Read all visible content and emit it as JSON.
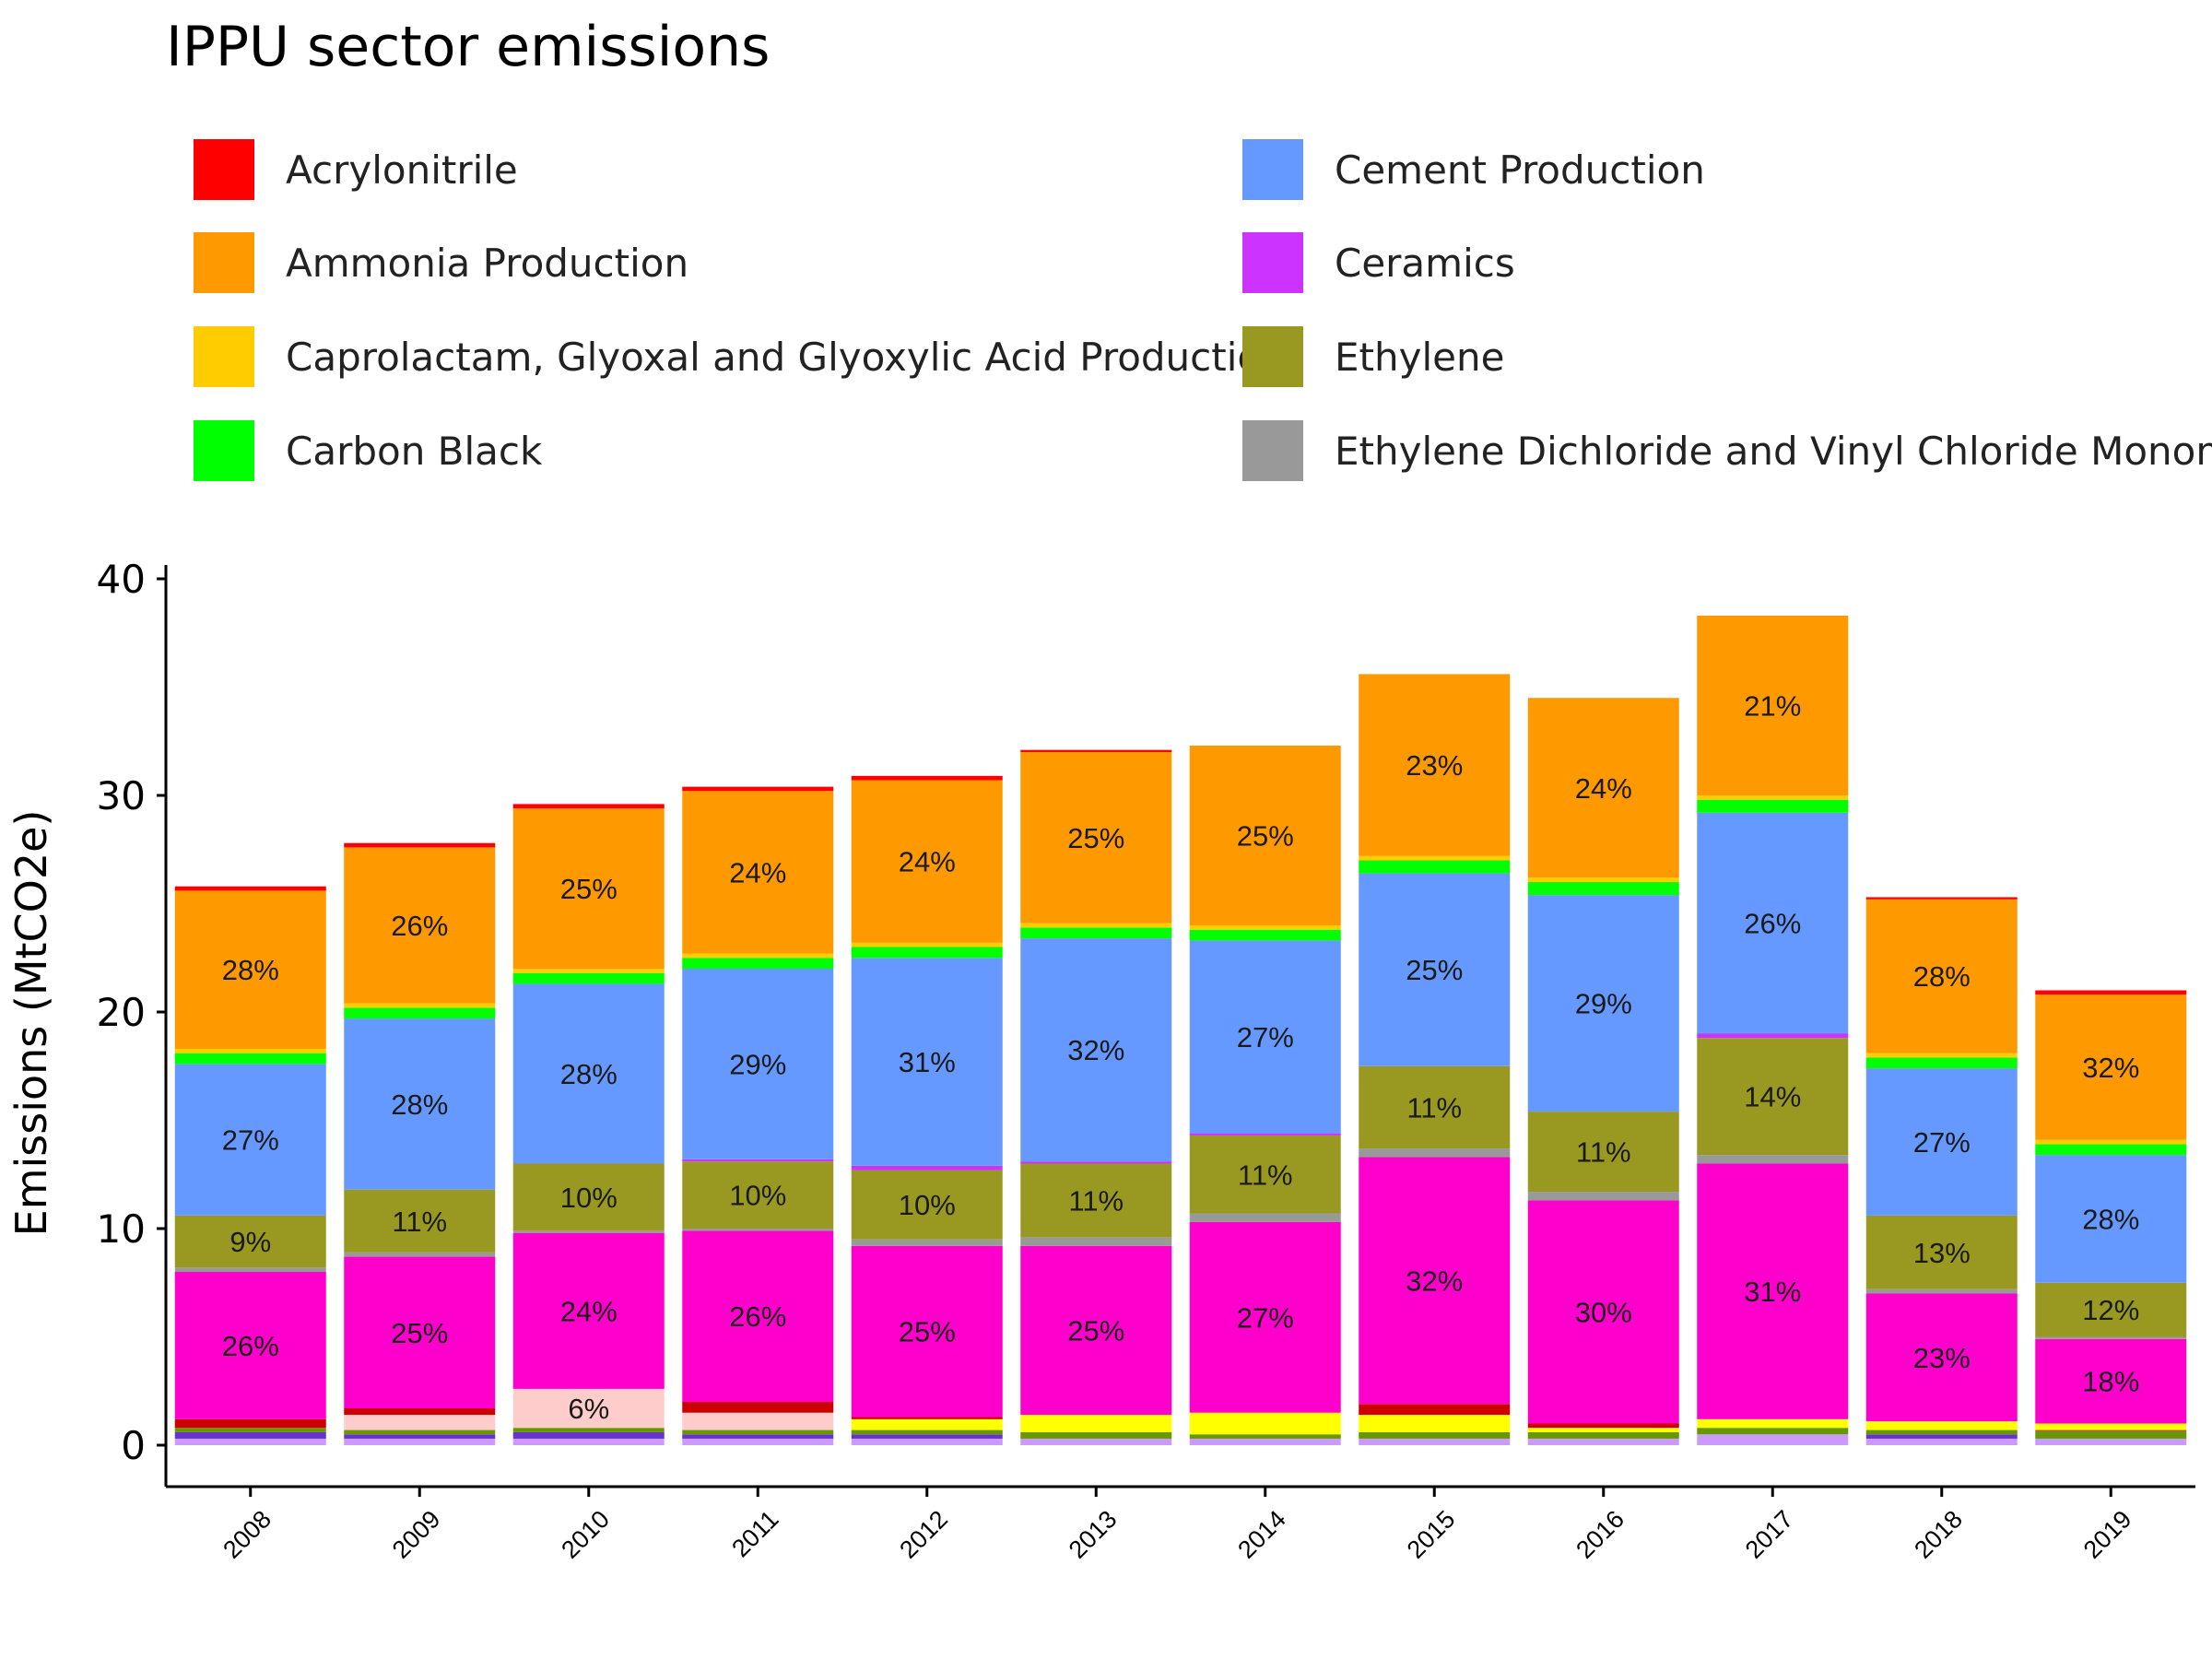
{
  "chart_data": {
    "type": "bar",
    "stacked": true,
    "title": "IPPU sector emissions",
    "xlabel": "",
    "ylabel": "Emissions (MtCO2e)",
    "ylim": [
      0,
      40
    ],
    "yticks": [
      0,
      10,
      20,
      30,
      40
    ],
    "grid": false,
    "legend_position": "top",
    "categories": [
      "2008",
      "2009",
      "2010",
      "2011",
      "2012",
      "2013",
      "2014",
      "2015",
      "2016",
      "2017",
      "2018",
      "2019"
    ],
    "series": [
      {
        "name": "",
        "color": "#cc99ff",
        "values": [
          0.3,
          0.3,
          0.3,
          0.3,
          0.3,
          0.3,
          0.3,
          0.3,
          0.3,
          0.5,
          0.3,
          0.3
        ],
        "labels": []
      },
      {
        "name": "",
        "color": "#6633cc",
        "values": [
          0.3,
          0.2,
          0.3,
          0.2,
          0.2,
          0.0,
          0.0,
          0.0,
          0.0,
          0.0,
          0.2,
          0.0
        ],
        "labels": []
      },
      {
        "name": "",
        "color": "#669900",
        "values": [
          0.2,
          0.2,
          0.2,
          0.2,
          0.2,
          0.3,
          0.2,
          0.3,
          0.3,
          0.3,
          0.2,
          0.3
        ],
        "labels": []
      },
      {
        "name": "",
        "color": "#996633",
        "values": [
          0.0,
          0.0,
          0.0,
          0.0,
          0.0,
          0.0,
          0.0,
          0.0,
          0.0,
          0.0,
          0.0,
          0.1
        ],
        "labels": []
      },
      {
        "name": "",
        "color": "#ffff00",
        "values": [
          0.0,
          0.0,
          0.0,
          0.0,
          0.5,
          0.8,
          1.0,
          0.8,
          0.2,
          0.4,
          0.4,
          0.3
        ],
        "labels": []
      },
      {
        "name": "",
        "color": "#ffcccc",
        "values": [
          0.0,
          0.7,
          1.8,
          0.8,
          0.0,
          0.0,
          0.0,
          0.0,
          0.0,
          0.0,
          0.0,
          0.0
        ],
        "labels": [
          "",
          "",
          "6%",
          "",
          "",
          "",
          "",
          "",
          "",
          "",
          "",
          ""
        ]
      },
      {
        "name": "",
        "color": "#cc0000",
        "values": [
          0.4,
          0.3,
          0.0,
          0.5,
          0.1,
          0.0,
          0.0,
          0.5,
          0.2,
          0.0,
          0.0,
          0.0
        ],
        "labels": []
      },
      {
        "name": "",
        "color": "#ff00cc",
        "values": [
          6.8,
          7.0,
          7.2,
          7.9,
          7.9,
          7.8,
          8.8,
          11.4,
          10.3,
          11.8,
          5.9,
          3.9
        ],
        "labels": [
          "26%",
          "25%",
          "24%",
          "26%",
          "25%",
          "25%",
          "27%",
          "32%",
          "30%",
          "31%",
          "23%",
          "18%"
        ]
      },
      {
        "name": "Ethylene Dichloride and Vinyl Chloride Monomer",
        "color": "#999999",
        "values": [
          0.2,
          0.2,
          0.1,
          0.1,
          0.3,
          0.4,
          0.4,
          0.4,
          0.4,
          0.4,
          0.2,
          0.1
        ],
        "labels": []
      },
      {
        "name": "Ethylene",
        "color": "#999922",
        "values": [
          2.4,
          2.9,
          3.1,
          3.1,
          3.2,
          3.4,
          3.6,
          3.8,
          3.7,
          5.4,
          3.4,
          2.5
        ],
        "labels": [
          "9%",
          "11%",
          "10%",
          "10%",
          "10%",
          "11%",
          "11%",
          "11%",
          "11%",
          "14%",
          "13%",
          "12%"
        ]
      },
      {
        "name": "Ceramics",
        "color": "#cc33ff",
        "values": [
          0.0,
          0.0,
          0.0,
          0.1,
          0.2,
          0.1,
          0.1,
          0.0,
          0.0,
          0.2,
          0.0,
          0.0
        ],
        "labels": []
      },
      {
        "name": "Cement Production",
        "color": "#6699ff",
        "values": [
          7.0,
          7.9,
          8.3,
          8.8,
          9.6,
          10.3,
          8.9,
          8.9,
          10.0,
          10.2,
          6.8,
          5.9
        ],
        "labels": [
          "27%",
          "28%",
          "28%",
          "29%",
          "31%",
          "32%",
          "27%",
          "25%",
          "29%",
          "26%",
          "27%",
          "28%"
        ]
      },
      {
        "name": "Carbon Black",
        "color": "#00ff00",
        "values": [
          0.5,
          0.5,
          0.5,
          0.5,
          0.5,
          0.5,
          0.5,
          0.6,
          0.6,
          0.6,
          0.5,
          0.5
        ],
        "labels": []
      },
      {
        "name": "Caprolactam, Glyoxal and Glyoxylic Acid Production",
        "color": "#ffcc00",
        "values": [
          0.2,
          0.2,
          0.2,
          0.2,
          0.2,
          0.2,
          0.2,
          0.2,
          0.2,
          0.2,
          0.2,
          0.2
        ],
        "labels": []
      },
      {
        "name": "Ammonia Production",
        "color": "#ff9900",
        "values": [
          7.3,
          7.2,
          7.4,
          7.5,
          7.5,
          7.9,
          8.3,
          8.4,
          8.3,
          8.3,
          7.1,
          6.7
        ],
        "labels": [
          "28%",
          "26%",
          "25%",
          "24%",
          "24%",
          "25%",
          "25%",
          "23%",
          "24%",
          "21%",
          "28%",
          "32%"
        ]
      },
      {
        "name": "Acrylonitrile",
        "color": "#ff0000",
        "values": [
          0.2,
          0.2,
          0.2,
          0.2,
          0.2,
          0.1,
          0.0,
          0.0,
          0.0,
          0.0,
          0.1,
          0.2
        ],
        "labels": []
      }
    ],
    "legend": [
      {
        "label": "Acrylonitrile",
        "color": "#ff0000"
      },
      {
        "label": "Ammonia Production",
        "color": "#ff9900"
      },
      {
        "label": "Caprolactam, Glyoxal and Glyoxylic Acid Production",
        "color": "#ffcc00"
      },
      {
        "label": "Carbon Black",
        "color": "#00ff00"
      },
      {
        "label": "Cement Production",
        "color": "#6699ff"
      },
      {
        "label": "Ceramics",
        "color": "#cc33ff"
      },
      {
        "label": "Ethylene",
        "color": "#999922"
      },
      {
        "label": "Ethylene Dichloride and Vinyl Chloride Monomer",
        "color": "#999999"
      }
    ]
  }
}
